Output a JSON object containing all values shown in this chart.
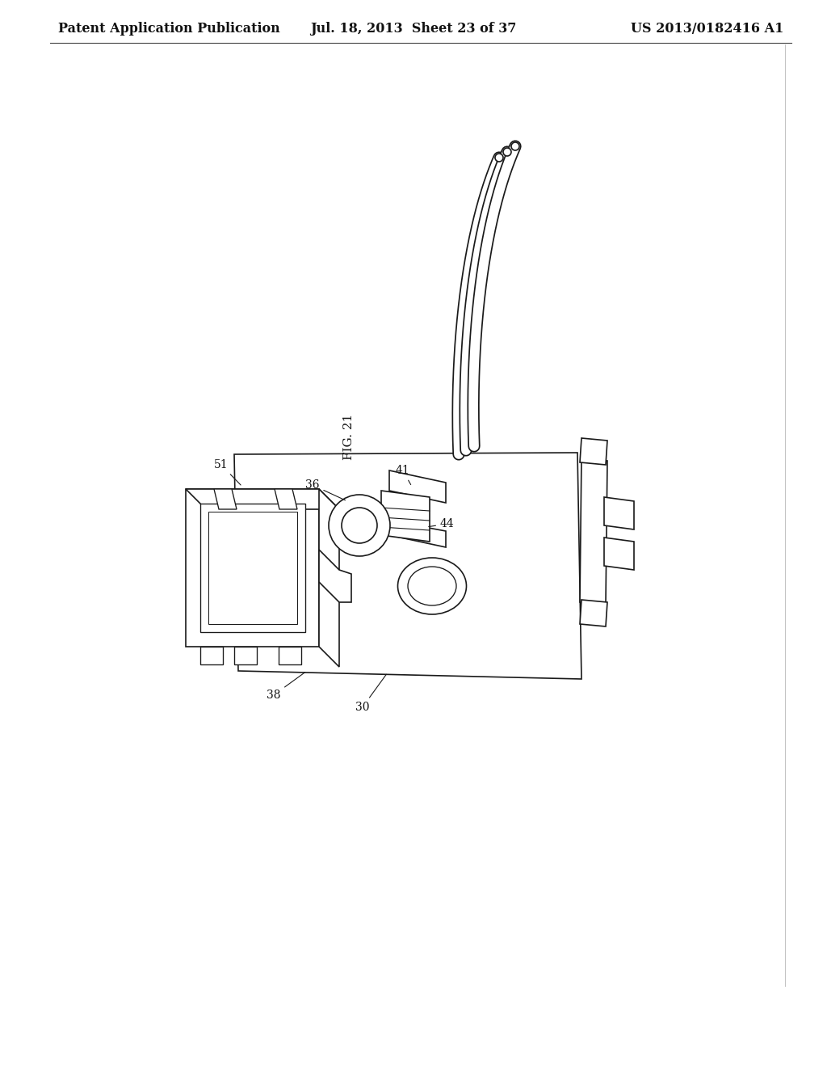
{
  "header_left": "Patent Application Publication",
  "header_center": "Jul. 18, 2013  Sheet 23 of 37",
  "header_right": "US 2013/0182416 A1",
  "fig_label": "FIG. 21",
  "background": "#ffffff",
  "line_color": "#1a1a1a",
  "header_font_size": 11.5,
  "fig_label_font_size": 11,
  "label_font_size": 10,
  "page_margin_color": "#cccccc"
}
